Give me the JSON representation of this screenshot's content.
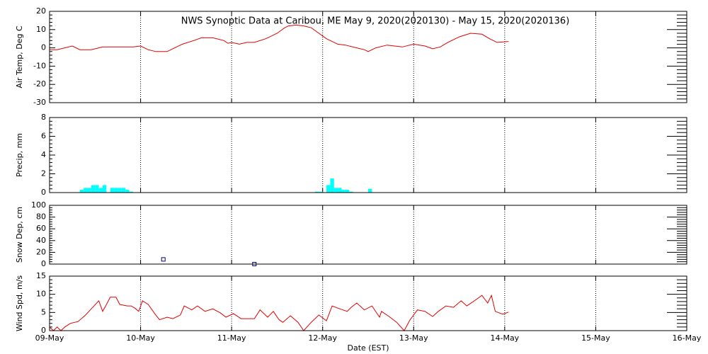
{
  "chart_data": [
    {
      "type": "line",
      "title": "NWS Synoptic Data at Caribou, ME   May  9, 2020(2020130) - May 15, 2020(2020136)",
      "ylabel": "Air Temp, Deg C",
      "color": "#e00000",
      "xlim": [
        0,
        168
      ],
      "xticks": [
        0,
        24,
        48,
        72,
        96,
        120,
        144,
        168
      ],
      "ylim": [
        -30,
        20
      ],
      "yticks": [
        -30,
        -20,
        -10,
        0,
        10,
        20
      ],
      "grid": true,
      "x": [
        0,
        2,
        6,
        8,
        11,
        14,
        19,
        22,
        24,
        26,
        28,
        31,
        33,
        35,
        38,
        40,
        43,
        46,
        47,
        48,
        50,
        52,
        54,
        57,
        60,
        62,
        63,
        65,
        67,
        69,
        71,
        73,
        76,
        78,
        81,
        83,
        84,
        86,
        89,
        91,
        93,
        96,
        99,
        101,
        103,
        105,
        108,
        111,
        114,
        116,
        118,
        121
      ],
      "values": [
        -1,
        -1,
        1,
        -1,
        -1,
        0.5,
        0.5,
        0.5,
        1,
        -1,
        -2,
        -2,
        0,
        2,
        4,
        5.5,
        5.5,
        4,
        2.5,
        3,
        2,
        3,
        3,
        5,
        8,
        11,
        12,
        12.5,
        12,
        11,
        8,
        5,
        2,
        1.5,
        0,
        -1,
        -2,
        0,
        1.5,
        1,
        0.5,
        2,
        1,
        -0.5,
        0.5,
        3,
        6,
        8,
        7.5,
        5,
        3,
        3.5
      ]
    },
    {
      "type": "bar",
      "ylabel": "Precip, mm",
      "color": "#00ffff",
      "xlim": [
        0,
        168
      ],
      "xticks": [
        0,
        24,
        48,
        72,
        96,
        120,
        144,
        168
      ],
      "ylim": [
        0,
        8
      ],
      "yticks": [
        0,
        2,
        4,
        6,
        8
      ],
      "grid": true,
      "x": [
        8,
        9,
        10,
        11,
        12,
        13,
        14,
        16,
        17,
        18,
        19,
        20,
        21,
        70,
        71,
        73,
        74,
        75,
        76,
        77,
        78,
        79,
        84
      ],
      "values": [
        0.3,
        0.5,
        0.5,
        0.8,
        0.8,
        0.5,
        0.8,
        0.5,
        0.5,
        0.5,
        0.5,
        0.3,
        0.1,
        0.1,
        0.1,
        0.8,
        1.5,
        0.5,
        0.5,
        0.3,
        0.3,
        0.1,
        0.4
      ]
    },
    {
      "type": "scatter",
      "ylabel": "Snow Dep, cm",
      "color": "#000080",
      "xlim": [
        0,
        168
      ],
      "xticks": [
        0,
        24,
        48,
        72,
        96,
        120,
        144,
        168
      ],
      "ylim": [
        0,
        100
      ],
      "yticks": [
        0,
        20,
        40,
        60,
        80,
        100
      ],
      "grid": true,
      "x": [
        30,
        54
      ],
      "values": [
        8,
        0
      ]
    },
    {
      "type": "line",
      "ylabel": "Wind Spd, m/s",
      "xlabel": "Date (EST)",
      "color": "#e00000",
      "xlim": [
        0,
        168
      ],
      "xticks": [
        {
          "value": 0,
          "label": "09-May"
        },
        {
          "value": 24,
          "label": "10-May"
        },
        {
          "value": 48,
          "label": "11-May"
        },
        {
          "value": 72,
          "label": "12-May"
        },
        {
          "value": 96,
          "label": "13-May"
        },
        {
          "value": 120,
          "label": "14-May"
        },
        {
          "value": 144,
          "label": "15-May"
        },
        {
          "value": 168,
          "label": "16-May"
        }
      ],
      "ylim": [
        0,
        15
      ],
      "yticks": [
        0,
        5,
        10,
        15
      ],
      "grid": true,
      "x": [
        0,
        1,
        2,
        3,
        4,
        5.5,
        7.5,
        9.5,
        11,
        13,
        14,
        15,
        16,
        17.5,
        18.5,
        20.5,
        21.5,
        22.5,
        23.5,
        24.5,
        26,
        28,
        29,
        31,
        32.5,
        34.5,
        35.5,
        37.5,
        39,
        41,
        43,
        45,
        46.5,
        48.5,
        50.5,
        52.5,
        54,
        55.5,
        57.5,
        59,
        60.5,
        61.5,
        63.5,
        65.5,
        67,
        69,
        70,
        71,
        73,
        74.5,
        76.5,
        78.5,
        79.5,
        81,
        83,
        85,
        87,
        87.5,
        89.5,
        91.5,
        93.5,
        95,
        97,
        99,
        101,
        102.5,
        104.5,
        106.5,
        108.5,
        110,
        112,
        114,
        115.5,
        116.5,
        117.5,
        119.5,
        121
      ],
      "values": [
        1,
        0,
        1,
        0,
        1,
        2,
        2.5,
        4.3,
        6,
        8.2,
        5.3,
        7.2,
        9.2,
        9.2,
        7.2,
        6.8,
        6.8,
        6.2,
        5.3,
        8.2,
        7.2,
        4.3,
        3,
        3.7,
        3.3,
        4.3,
        6.8,
        5.7,
        6.8,
        5.3,
        6,
        4.9,
        3.7,
        4.7,
        3.3,
        3.3,
        3.3,
        5.7,
        3.7,
        5.3,
        3,
        2.3,
        4.1,
        2.3,
        0,
        2.3,
        3.3,
        4.3,
        2.7,
        6.8,
        6,
        5.3,
        6.4,
        7.6,
        5.7,
        6.8,
        3.7,
        5.3,
        3.9,
        2.3,
        0,
        2.9,
        5.7,
        5.3,
        3.9,
        5.3,
        6.8,
        6.4,
        8.2,
        6.8,
        8.2,
        9.7,
        7.6,
        9.7,
        5.3,
        4.5,
        5.1
      ]
    }
  ]
}
